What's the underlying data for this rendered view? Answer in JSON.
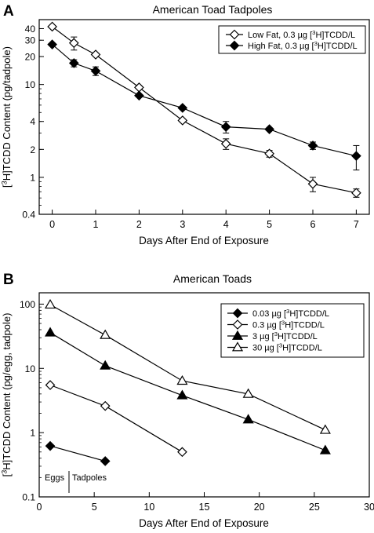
{
  "chart_data": [
    {
      "panel": "A",
      "type": "line",
      "title": "American Toad Tadpoles",
      "xlabel": "Days After End of Exposure",
      "ylabel_parts": [
        "[",
        "3",
        "H]TCDD Content (pg/tadpole)"
      ],
      "xlim": [
        -0.3,
        7.3
      ],
      "ylim": [
        0.4,
        50
      ],
      "yscale": "log",
      "x_ticks": [
        0,
        1,
        2,
        3,
        4,
        5,
        6,
        7
      ],
      "y_ticks": [
        0.4,
        1,
        2,
        4,
        10,
        20,
        30,
        40
      ],
      "legend_position": "top-right",
      "series": [
        {
          "name_parts": [
            "Low Fat, 0.3 µg [",
            "3",
            "H]TCDD/L"
          ],
          "marker": "diamond-open",
          "x": [
            0,
            0.5,
            1,
            2,
            3,
            4,
            5,
            6,
            7
          ],
          "y": [
            42,
            28,
            21,
            9.3,
            4.1,
            2.3,
            1.8,
            0.85,
            0.68
          ],
          "err": [
            0,
            4.5,
            0,
            0,
            0,
            0.3,
            0.15,
            0.15,
            0.07
          ]
        },
        {
          "name_parts": [
            "High Fat, 0.3 µg [",
            "3",
            "H]TCDD/L"
          ],
          "marker": "diamond-filled",
          "x": [
            0,
            0.5,
            1,
            2,
            3,
            4,
            5,
            6,
            7
          ],
          "y": [
            27,
            17,
            14,
            7.6,
            5.6,
            3.5,
            3.3,
            2.2,
            1.7
          ],
          "err": [
            0,
            1.5,
            1.5,
            0,
            0,
            0.5,
            0,
            0.2,
            0.5
          ]
        }
      ]
    },
    {
      "panel": "B",
      "type": "line",
      "title": "American Toads",
      "xlabel": "Days After End of Exposure",
      "ylabel_parts": [
        "[",
        "3",
        "H]TCDD Content (pg/egg, tadpole)"
      ],
      "xlim": [
        0,
        30
      ],
      "ylim": [
        0.1,
        150
      ],
      "yscale": "log",
      "x_ticks": [
        0,
        5,
        10,
        15,
        20,
        25,
        30
      ],
      "y_ticks": [
        0.1,
        1,
        10,
        100
      ],
      "legend_position": "top-right",
      "annotation_left": "Eggs",
      "annotation_right": "Tadpoles",
      "series": [
        {
          "name_parts": [
            "0.03 µg [",
            "3",
            "H]TCDD/L"
          ],
          "marker": "diamond-filled",
          "x": [
            1,
            6
          ],
          "y": [
            0.62,
            0.36
          ]
        },
        {
          "name_parts": [
            "0.3 µg [",
            "3",
            "H]TCDD/L"
          ],
          "marker": "diamond-open",
          "x": [
            1,
            6,
            13
          ],
          "y": [
            5.5,
            2.6,
            0.5
          ]
        },
        {
          "name_parts": [
            "3 µg [",
            "3",
            "H]TCDD/L"
          ],
          "marker": "triangle-filled",
          "x": [
            1,
            6,
            13,
            19,
            26
          ],
          "y": [
            36,
            11,
            3.8,
            1.6,
            0.53
          ]
        },
        {
          "name_parts": [
            "30 µg [",
            "3",
            "H]TCDD/L"
          ],
          "marker": "triangle-open",
          "x": [
            1,
            6,
            13,
            19,
            26
          ],
          "y": [
            98,
            33,
            6.4,
            4.0,
            1.1
          ]
        }
      ]
    }
  ],
  "panel_labels": [
    "A",
    "B"
  ]
}
